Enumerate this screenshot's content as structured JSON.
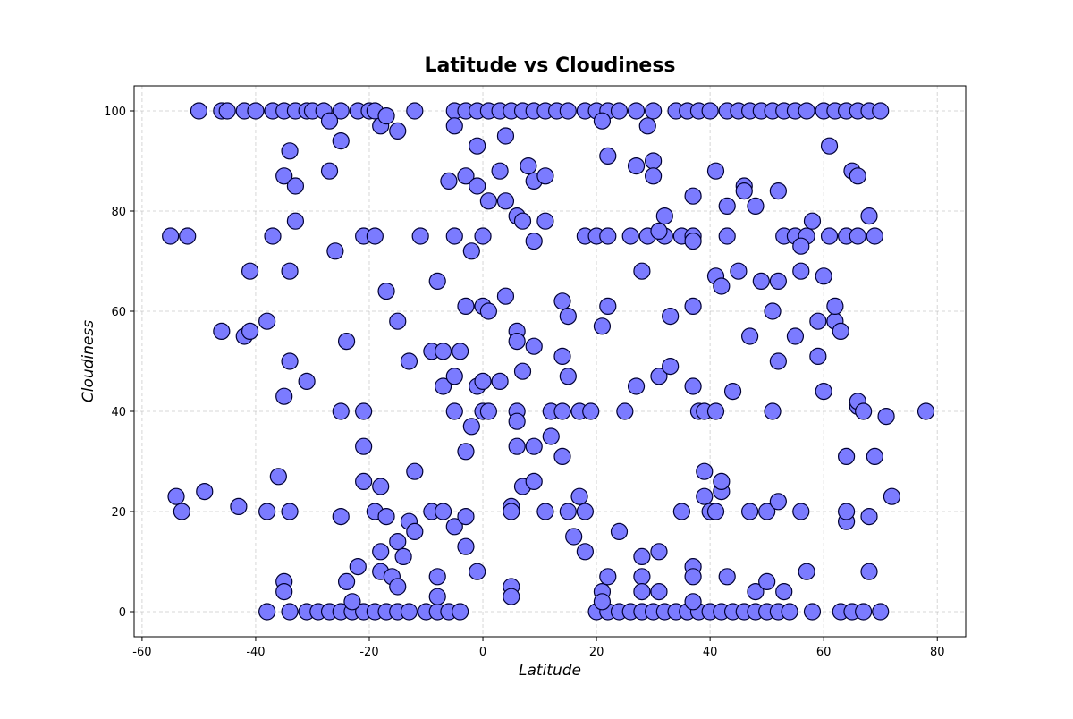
{
  "chart_data": {
    "type": "scatter",
    "title": "Latitude vs Cloudiness",
    "x_label": "Latitude",
    "y_label": "Cloudiness",
    "x": [
      -50,
      -46,
      -45,
      -42,
      -40,
      -37,
      -35,
      -33,
      -31,
      -30,
      -28,
      -25,
      -22,
      -20,
      -19,
      -12,
      -5,
      -3,
      -1,
      1,
      3,
      5,
      7,
      9,
      11,
      13,
      15,
      18,
      20,
      22,
      24,
      27,
      30,
      34,
      36,
      38,
      40,
      43,
      45,
      47,
      49,
      51,
      53,
      55,
      57,
      60,
      62,
      64,
      66,
      68,
      70,
      -38,
      -34,
      -31,
      -29,
      -27,
      -25,
      -23,
      -21,
      -19,
      -17,
      -15,
      -13,
      -10,
      -8,
      -6,
      -4,
      20,
      22,
      24,
      26,
      28,
      30,
      32,
      34,
      36,
      38,
      40,
      42,
      44,
      46,
      48,
      50,
      52,
      54,
      58,
      63,
      65,
      67,
      70,
      -55,
      -52,
      -37,
      -21,
      -19,
      -11,
      -5,
      0,
      18,
      20,
      22,
      26,
      29,
      32,
      35,
      37,
      43,
      53,
      55,
      57,
      61,
      64,
      66,
      69,
      -54,
      -53,
      -49,
      -46,
      -42,
      -41,
      -41,
      -43,
      -38,
      -38,
      -36,
      -35,
      -34,
      -33,
      -33,
      -34,
      -34,
      -35,
      -34,
      -35,
      -35,
      -31,
      -27,
      -27,
      -26,
      -25,
      -25,
      -25,
      -24,
      -24,
      -23,
      -21,
      -21,
      -21,
      -22,
      -18,
      -17,
      -15,
      -17,
      -15,
      -18,
      -19,
      -17,
      -18,
      -18,
      -16,
      -15,
      -15,
      -14,
      -13,
      -13,
      -12,
      -12,
      -9,
      -8,
      -7,
      -7,
      -9,
      -7,
      -8,
      -8,
      -6,
      -5,
      -5,
      -5,
      -5,
      -4,
      -3,
      -3,
      -3,
      -3,
      -3,
      -2,
      -2,
      -1,
      -1,
      -1,
      -1,
      0,
      0,
      0,
      1,
      1,
      1,
      3,
      3,
      4,
      4,
      4,
      5,
      5,
      5,
      5,
      6,
      6,
      6,
      6,
      6,
      6,
      7,
      7,
      7,
      8,
      9,
      9,
      9,
      9,
      9,
      11,
      11,
      12,
      12,
      11,
      14,
      14,
      15,
      15,
      14,
      14,
      15,
      16,
      17,
      17,
      18,
      18,
      19,
      21,
      21,
      22,
      22,
      21,
      21,
      22,
      24,
      25,
      27,
      27,
      28,
      28,
      28,
      28,
      29,
      30,
      30,
      31,
      31,
      31,
      31,
      32,
      33,
      33,
      35,
      37,
      37,
      37,
      37,
      37,
      37,
      37,
      38,
      39,
      39,
      39,
      40,
      41,
      41,
      41,
      41,
      42,
      42,
      42,
      43,
      44,
      43,
      45,
      46,
      46,
      47,
      48,
      47,
      48,
      49,
      50,
      50,
      51,
      51,
      52,
      52,
      52,
      52,
      53,
      55,
      56,
      56,
      56,
      57,
      58,
      59,
      59,
      60,
      60,
      61,
      62,
      62,
      63,
      64,
      64,
      64,
      65,
      66,
      66,
      66,
      67,
      68,
      68,
      68,
      69,
      71,
      72,
      78
    ],
    "values": [
      100,
      100,
      100,
      100,
      100,
      100,
      100,
      100,
      100,
      100,
      100,
      100,
      100,
      100,
      100,
      100,
      100,
      100,
      100,
      100,
      100,
      100,
      100,
      100,
      100,
      100,
      100,
      100,
      100,
      100,
      100,
      100,
      100,
      100,
      100,
      100,
      100,
      100,
      100,
      100,
      100,
      100,
      100,
      100,
      100,
      100,
      100,
      100,
      100,
      100,
      100,
      0,
      0,
      0,
      0,
      0,
      0,
      0,
      0,
      0,
      0,
      0,
      0,
      0,
      0,
      0,
      0,
      0,
      0,
      0,
      0,
      0,
      0,
      0,
      0,
      0,
      0,
      0,
      0,
      0,
      0,
      0,
      0,
      0,
      0,
      0,
      0,
      0,
      0,
      0,
      75,
      75,
      75,
      75,
      75,
      75,
      75,
      75,
      75,
      75,
      75,
      75,
      75,
      75,
      75,
      75,
      75,
      75,
      75,
      75,
      75,
      75,
      75,
      75,
      23,
      20,
      24,
      56,
      55,
      56,
      68,
      21,
      58,
      20,
      27,
      87,
      92,
      85,
      78,
      68,
      50,
      43,
      20,
      6,
      4,
      46,
      98,
      88,
      72,
      94,
      40,
      19,
      54,
      6,
      2,
      40,
      33,
      26,
      9,
      97,
      99,
      96,
      64,
      58,
      25,
      20,
      19,
      12,
      8,
      7,
      14,
      5,
      11,
      50,
      18,
      16,
      28,
      52,
      66,
      52,
      45,
      20,
      20,
      7,
      3,
      86,
      97,
      47,
      40,
      17,
      52,
      87,
      61,
      32,
      19,
      13,
      72,
      37,
      93,
      85,
      45,
      8,
      61,
      46,
      40,
      82,
      60,
      40,
      88,
      46,
      95,
      82,
      63,
      5,
      3,
      21,
      20,
      79,
      56,
      54,
      40,
      38,
      33,
      78,
      48,
      25,
      89,
      86,
      74,
      53,
      33,
      26,
      87,
      78,
      40,
      35,
      20,
      62,
      51,
      59,
      47,
      40,
      31,
      20,
      15,
      23,
      40,
      20,
      12,
      40,
      98,
      57,
      91,
      61,
      4,
      2,
      7,
      16,
      40,
      89,
      45,
      68,
      11,
      7,
      4,
      97,
      90,
      87,
      76,
      47,
      12,
      4,
      79,
      59,
      49,
      20,
      61,
      83,
      74,
      45,
      9,
      7,
      2,
      40,
      40,
      28,
      23,
      20,
      67,
      88,
      40,
      20,
      24,
      26,
      65,
      81,
      44,
      7,
      68,
      85,
      84,
      55,
      81,
      20,
      4,
      66,
      20,
      6,
      60,
      40,
      84,
      66,
      50,
      22,
      4,
      55,
      73,
      20,
      68,
      8,
      78,
      51,
      58,
      67,
      44,
      93,
      58,
      61,
      56,
      31,
      18,
      20,
      88,
      87,
      41,
      42,
      40,
      79,
      8,
      19,
      31,
      39,
      23,
      40
    ],
    "color": "#7b7bff",
    "edgecolor": "#000033",
    "xlim": [
      -61.4,
      85
    ],
    "ylim": [
      -5,
      105
    ],
    "xticks": [
      -60,
      -40,
      -20,
      0,
      20,
      40,
      60,
      80
    ],
    "yticks": [
      0,
      20,
      40,
      60,
      80,
      100
    ],
    "grid": true
  }
}
